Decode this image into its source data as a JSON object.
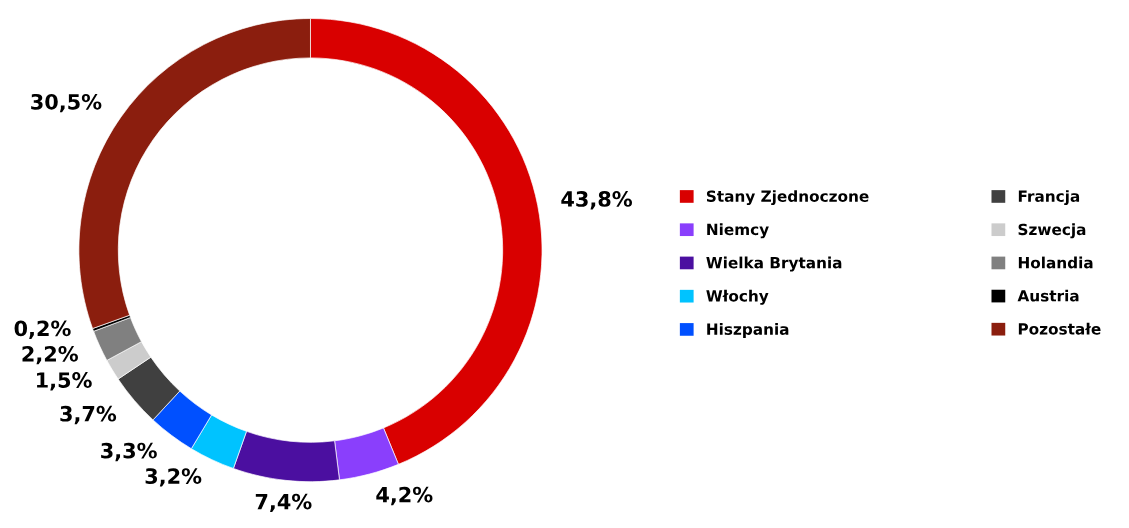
{
  "chart_data": {
    "type": "donut",
    "categories": [
      "Stany Zjednoczone",
      "Niemcy",
      "Wielka Brytania",
      "Włochy",
      "Hiszpania",
      "Francja",
      "Szwecja",
      "Holandia",
      "Austria",
      "Pozostałe"
    ],
    "values": [
      43.8,
      4.2,
      7.4,
      3.2,
      3.3,
      3.7,
      1.5,
      2.2,
      0.2,
      30.5
    ],
    "colors": [
      "#d90000",
      "#8a3ffc",
      "#4b0fa0",
      "#00c3ff",
      "#0050ff",
      "#404040",
      "#cccccc",
      "#808080",
      "#000000",
      "#8b1e0e"
    ],
    "value_labels": [
      "43,8%",
      "4,2%",
      "7,4%",
      "3,2%",
      "3,3%",
      "3,7%",
      "1,5%",
      "2,2%",
      "0,2%",
      "30,5%"
    ],
    "legend": "right"
  }
}
